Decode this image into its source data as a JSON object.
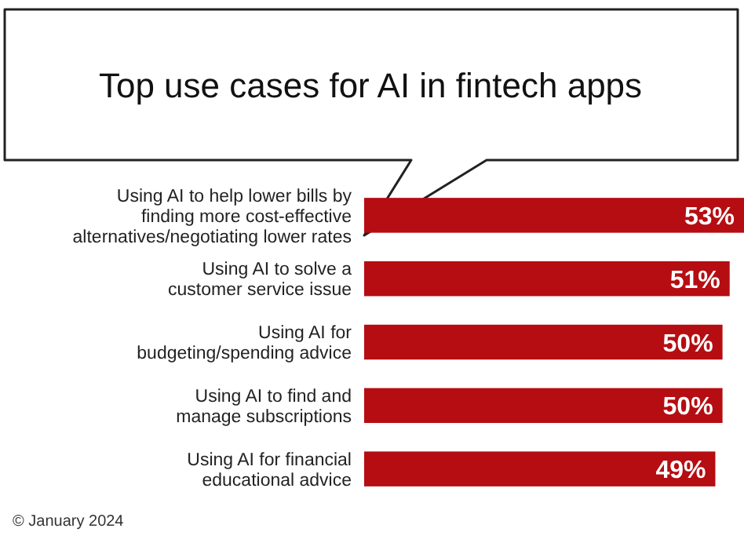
{
  "chart_data": {
    "type": "bar",
    "orientation": "horizontal",
    "title": "Top use cases for AI in fintech apps",
    "categories": [
      "Using AI to help lower bills by\nfinding more cost-effective\nalternatives/negotiating lower rates",
      "Using AI to solve a\ncustomer service issue",
      "Using AI for\nbudgeting/spending advice",
      "Using AI to find and\nmanage subscriptions",
      "Using AI for financial\neducational advice"
    ],
    "values": [
      53,
      51,
      50,
      50,
      49
    ],
    "value_labels": [
      "53%",
      "51%",
      "50%",
      "50%",
      "49%"
    ],
    "color": "#b50d12",
    "annotations": [
      "© January 2024"
    ]
  }
}
